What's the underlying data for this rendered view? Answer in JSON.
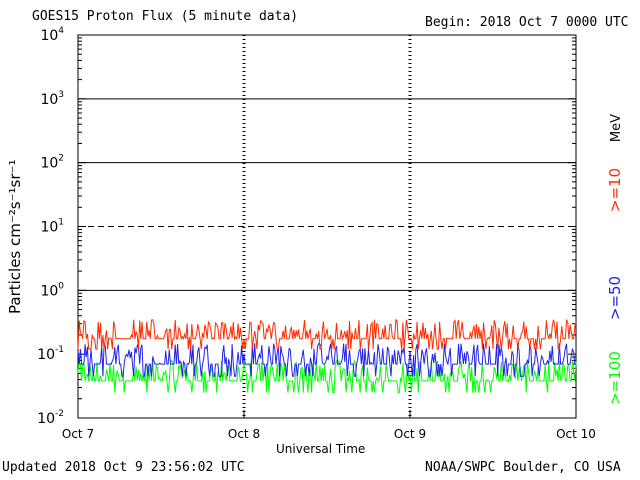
{
  "header": {
    "title": "GOES15 Proton Flux (5 minute data)",
    "begin": "Begin: 2018 Oct 7 0000 UTC"
  },
  "footer": {
    "updated": "Updated 2018 Oct  9 23:56:02 UTC",
    "source": "NOAA/SWPC Boulder, CO USA"
  },
  "chart_data": {
    "type": "line",
    "title": "GOES15 Proton Flux (5 minute data)",
    "xlabel": "Universal Time",
    "ylabel": "Particles cm⁻²s⁻¹sr⁻¹",
    "y_scale": "log",
    "ylim": [
      0.01,
      10000
    ],
    "y_ticks": [
      {
        "base": "10",
        "exp": "-2"
      },
      {
        "base": "10",
        "exp": "-1"
      },
      {
        "base": "10",
        "exp": "0"
      },
      {
        "base": "10",
        "exp": "1"
      },
      {
        "base": "10",
        "exp": "2"
      },
      {
        "base": "10",
        "exp": "3"
      },
      {
        "base": "10",
        "exp": "4"
      }
    ],
    "x_ticks": [
      "Oct 7",
      "Oct 8",
      "Oct 9",
      "Oct 10"
    ],
    "grid": true,
    "reference_lines": [
      {
        "y": 1,
        "style": "solid"
      },
      {
        "y": 10,
        "style": "dashed"
      },
      {
        "y": 100,
        "style": "solid"
      },
      {
        "y": 1000,
        "style": "solid"
      }
    ],
    "legend_unit": "MeV",
    "series": [
      {
        "name": ">=10",
        "color": "#ff2a00",
        "typical_range": [
          0.12,
          0.35
        ]
      },
      {
        "name": ">=50",
        "color": "#2222ee",
        "typical_range": [
          0.045,
          0.15
        ]
      },
      {
        "name": ">=100",
        "color": "#00ff00",
        "typical_range": [
          0.025,
          0.08
        ]
      }
    ]
  }
}
